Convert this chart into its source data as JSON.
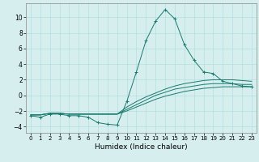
{
  "xlabel": "Humidex (Indice chaleur)",
  "background_color": "#d6eeee",
  "line_color": "#1a7a6e",
  "xlim": [
    -0.5,
    23.5
  ],
  "ylim": [
    -4.8,
    11.8
  ],
  "xticks": [
    0,
    1,
    2,
    3,
    4,
    5,
    6,
    7,
    8,
    9,
    10,
    11,
    12,
    13,
    14,
    15,
    16,
    17,
    18,
    19,
    20,
    21,
    22,
    23
  ],
  "yticks": [
    -4,
    -2,
    0,
    2,
    4,
    6,
    8,
    10
  ],
  "series": [
    {
      "x": [
        0,
        1,
        2,
        3,
        4,
        5,
        6,
        7,
        8,
        9,
        10,
        11,
        12,
        13,
        14,
        15,
        16,
        17,
        18,
        19,
        20,
        21,
        22,
        23
      ],
      "y": [
        -2.6,
        -2.8,
        -2.4,
        -2.4,
        -2.6,
        -2.6,
        -2.8,
        -3.5,
        -3.7,
        -3.8,
        -0.8,
        3.0,
        7.0,
        9.5,
        11.0,
        9.8,
        6.5,
        4.5,
        3.0,
        2.8,
        1.8,
        1.5,
        1.2,
        1.1
      ],
      "marker": true
    },
    {
      "x": [
        0,
        1,
        2,
        3,
        4,
        5,
        6,
        7,
        8,
        9,
        10,
        11,
        12,
        13,
        14,
        15,
        16,
        17,
        18,
        19,
        20,
        21,
        22,
        23
      ],
      "y": [
        -2.5,
        -2.5,
        -2.3,
        -2.3,
        -2.4,
        -2.4,
        -2.4,
        -2.4,
        -2.4,
        -2.4,
        -1.5,
        -0.8,
        -0.2,
        0.3,
        0.8,
        1.2,
        1.5,
        1.7,
        1.9,
        2.0,
        2.0,
        2.0,
        1.9,
        1.8
      ],
      "marker": false
    },
    {
      "x": [
        0,
        1,
        2,
        3,
        4,
        5,
        6,
        7,
        8,
        9,
        10,
        11,
        12,
        13,
        14,
        15,
        16,
        17,
        18,
        19,
        20,
        21,
        22,
        23
      ],
      "y": [
        -2.5,
        -2.5,
        -2.3,
        -2.3,
        -2.4,
        -2.4,
        -2.4,
        -2.4,
        -2.4,
        -2.4,
        -1.8,
        -1.2,
        -0.6,
        0.0,
        0.4,
        0.8,
        1.0,
        1.2,
        1.4,
        1.5,
        1.5,
        1.5,
        1.4,
        1.4
      ],
      "marker": false
    },
    {
      "x": [
        0,
        1,
        2,
        3,
        4,
        5,
        6,
        7,
        8,
        9,
        10,
        11,
        12,
        13,
        14,
        15,
        16,
        17,
        18,
        19,
        20,
        21,
        22,
        23
      ],
      "y": [
        -2.5,
        -2.5,
        -2.3,
        -2.3,
        -2.4,
        -2.4,
        -2.4,
        -2.4,
        -2.4,
        -2.4,
        -2.0,
        -1.5,
        -1.0,
        -0.5,
        -0.1,
        0.2,
        0.5,
        0.7,
        0.9,
        1.0,
        1.1,
        1.1,
        1.1,
        1.1
      ],
      "marker": false
    }
  ]
}
